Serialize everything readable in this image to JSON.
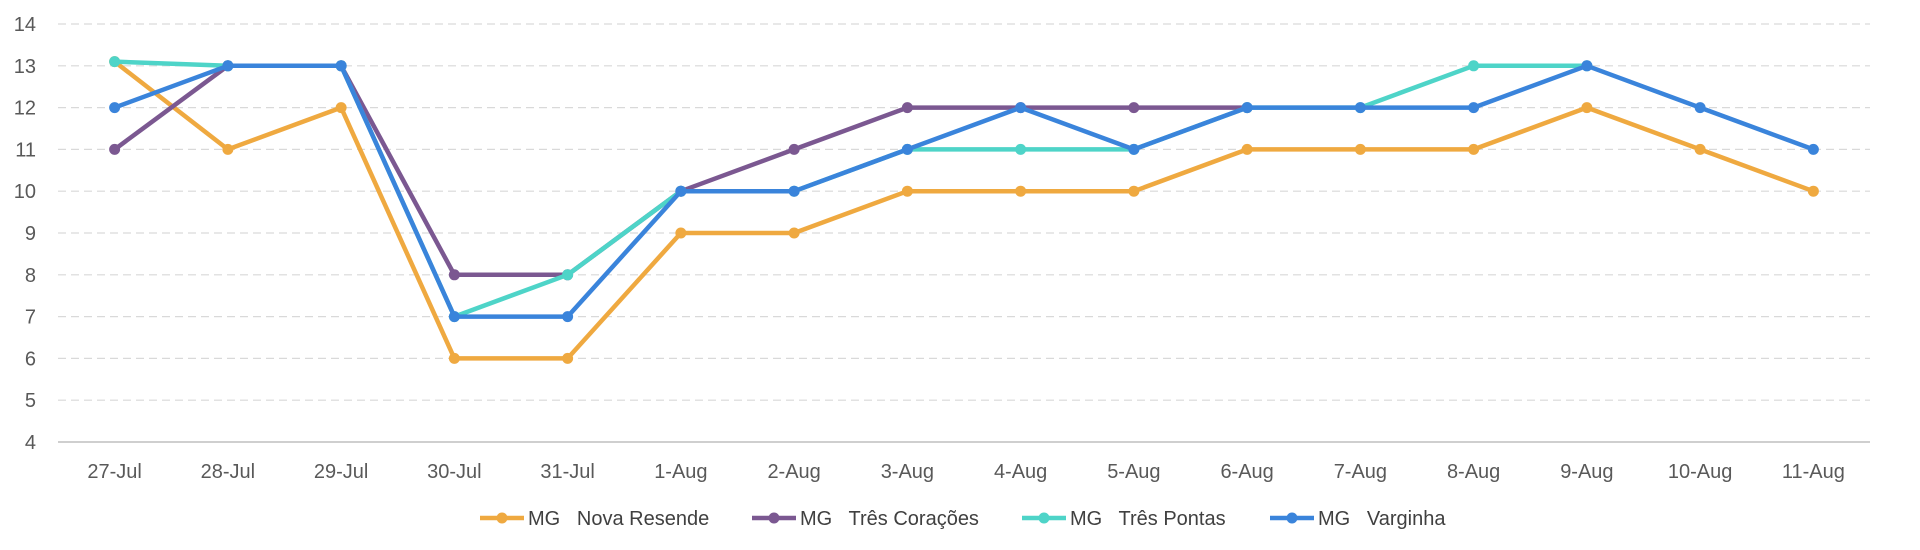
{
  "chart_data": {
    "type": "line",
    "title": "",
    "xlabel": "",
    "ylabel": "",
    "categories": [
      "27-Jul",
      "28-Jul",
      "29-Jul",
      "30-Jul",
      "31-Jul",
      "1-Aug",
      "2-Aug",
      "3-Aug",
      "4-Aug",
      "5-Aug",
      "6-Aug",
      "7-Aug",
      "8-Aug",
      "9-Aug",
      "10-Aug",
      "11-Aug"
    ],
    "ylim": [
      4,
      14
    ],
    "yticks": [
      4,
      5,
      6,
      7,
      8,
      9,
      10,
      11,
      12,
      13,
      14
    ],
    "grid": true,
    "legend_position": "bottom",
    "series": [
      {
        "name": "MG   Nova Resende",
        "color": "#EFA940",
        "values": [
          13.1,
          11,
          12,
          6,
          6,
          9,
          9,
          10,
          10,
          10,
          11,
          11,
          11,
          12,
          11,
          10
        ]
      },
      {
        "name": "MG   Três Corações",
        "color": "#7B5891",
        "values": [
          11,
          13,
          13,
          8,
          8,
          10,
          11,
          12,
          12,
          12,
          12,
          null,
          null,
          null,
          null,
          null
        ]
      },
      {
        "name": "MG   Três Pontas",
        "color": "#4ED4C8",
        "values": [
          13.1,
          13,
          13,
          7,
          8,
          10,
          10,
          11,
          11,
          11,
          12,
          12,
          13,
          13,
          null,
          null
        ]
      },
      {
        "name": "MG   Varginha",
        "color": "#3A84DB",
        "values": [
          12,
          13,
          13,
          7,
          7,
          10,
          10,
          11,
          12,
          11,
          12,
          12,
          12,
          13,
          12,
          11
        ]
      }
    ]
  }
}
